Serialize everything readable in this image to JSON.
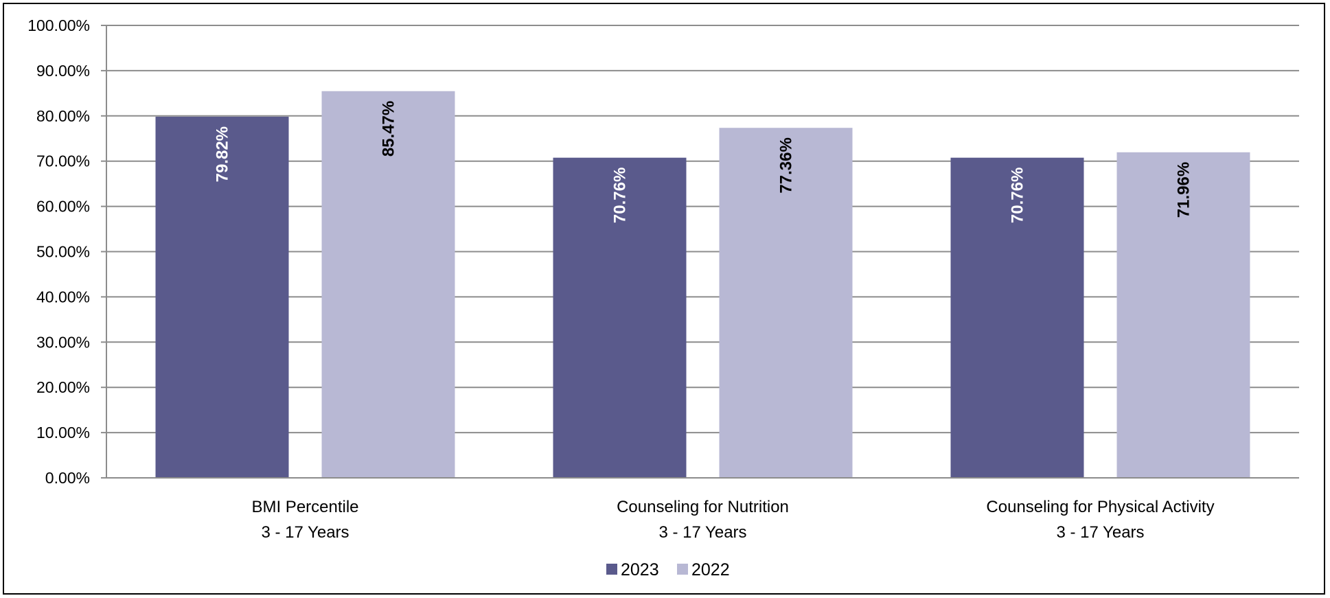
{
  "chart_data": {
    "type": "bar",
    "title": "",
    "xlabel": "",
    "ylabel": "",
    "ylim": [
      0,
      100
    ],
    "y_ticks": [
      "0.00%",
      "10.00%",
      "20.00%",
      "30.00%",
      "40.00%",
      "50.00%",
      "60.00%",
      "70.00%",
      "80.00%",
      "90.00%",
      "100.00%"
    ],
    "grid": true,
    "legend_position": "bottom",
    "categories": [
      [
        "BMI Percentile",
        "3 - 17 Years"
      ],
      [
        "Counseling for Nutrition",
        "3 - 17 Years"
      ],
      [
        "Counseling for Physical Activity",
        "3 - 17 Years"
      ]
    ],
    "series": [
      {
        "name": "2023",
        "color": "#5a5a8c",
        "label_color": "#ffffff",
        "values": [
          79.82,
          70.76,
          70.76
        ],
        "labels": [
          "79.82%",
          "70.76%",
          "70.76%"
        ]
      },
      {
        "name": "2022",
        "color": "#b8b8d4",
        "label_color": "#000000",
        "values": [
          85.47,
          77.36,
          71.96
        ],
        "labels": [
          "85.47%",
          "77.36%",
          "71.96%"
        ]
      }
    ]
  }
}
